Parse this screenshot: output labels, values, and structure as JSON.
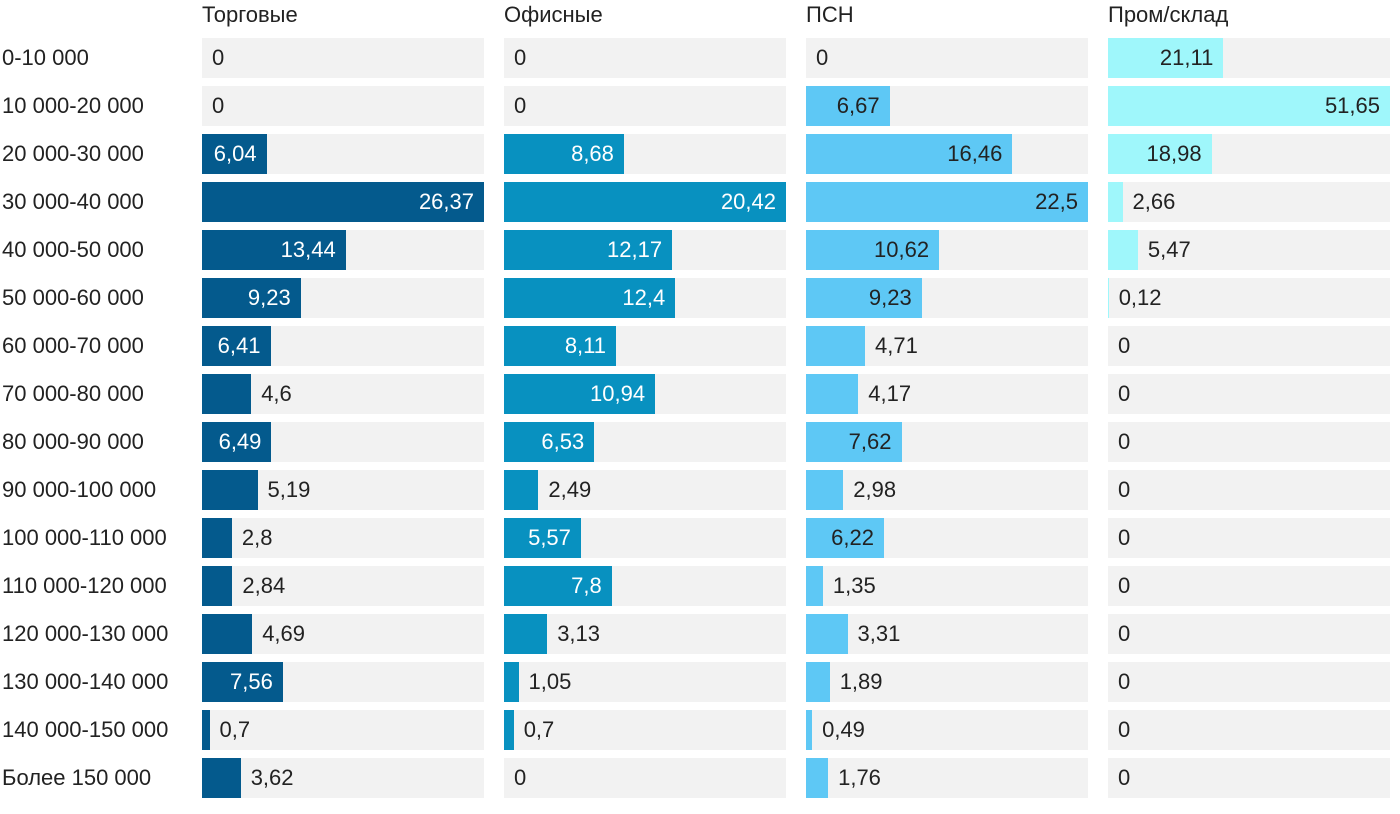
{
  "chart_data": {
    "type": "bar",
    "layout": "small-multiples-horizontal",
    "categories": [
      "0-10 000",
      "10 000-20 000",
      "20 000-30 000",
      "30 000-40 000",
      "40 000-50 000",
      "50 000-60 000",
      "60 000-70 000",
      "70 000-80 000",
      "80 000-90 000",
      "90 000-100 000",
      "100 000-110 000",
      "110 000-120 000",
      "120 000-130 000",
      "130 000-140 000",
      "140 000-150 000",
      "Более 150 000"
    ],
    "series": [
      {
        "name": "Торговые",
        "color": "#045a8d",
        "label_inside_color": "#ffffff",
        "values": [
          0,
          0,
          6.04,
          26.37,
          13.44,
          9.23,
          6.41,
          4.6,
          6.49,
          5.19,
          2.8,
          2.84,
          4.69,
          7.56,
          0.7,
          3.62
        ],
        "labels": [
          "0",
          "0",
          "6,04",
          "26,37",
          "13,44",
          "9,23",
          "6,41",
          "4,6",
          "6,49",
          "5,19",
          "2,8",
          "2,84",
          "4,69",
          "7,56",
          "0,7",
          "3,62"
        ],
        "xlim": [
          0,
          26.37
        ]
      },
      {
        "name": "Офисные",
        "color": "#0891c0",
        "label_inside_color": "#ffffff",
        "values": [
          0,
          0,
          8.68,
          20.42,
          12.17,
          12.4,
          8.11,
          10.94,
          6.53,
          2.49,
          5.57,
          7.8,
          3.13,
          1.05,
          0.7,
          0
        ],
        "labels": [
          "0",
          "0",
          "8,68",
          "20,42",
          "12,17",
          "12,4",
          "8,11",
          "10,94",
          "6,53",
          "2,49",
          "5,57",
          "7,8",
          "3,13",
          "1,05",
          "0,7",
          "0"
        ],
        "xlim": [
          0,
          20.42
        ]
      },
      {
        "name": "ПСН",
        "color": "#5ec8f5",
        "label_inside_color": "#222222",
        "values": [
          0,
          6.67,
          16.46,
          22.5,
          10.62,
          9.23,
          4.71,
          4.17,
          7.62,
          2.98,
          6.22,
          1.35,
          3.31,
          1.89,
          0.49,
          1.76
        ],
        "labels": [
          "0",
          "6,67",
          "16,46",
          "22,5",
          "10,62",
          "9,23",
          "4,71",
          "4,17",
          "7,62",
          "2,98",
          "6,22",
          "1,35",
          "3,31",
          "1,89",
          "0,49",
          "1,76"
        ],
        "xlim": [
          0,
          22.5
        ]
      },
      {
        "name": "Пром/склад",
        "color": "#9ff7fb",
        "label_inside_color": "#222222",
        "values": [
          21.11,
          51.65,
          18.98,
          2.66,
          5.47,
          0.12,
          0,
          0,
          0,
          0,
          0,
          0,
          0,
          0,
          0,
          0
        ],
        "labels": [
          "21,11",
          "51,65",
          "18,98",
          "2,66",
          "5,47",
          "0,12",
          "0",
          "0",
          "0",
          "0",
          "0",
          "0",
          "0",
          "0",
          "0",
          "0"
        ],
        "xlim": [
          0,
          51.65
        ]
      }
    ],
    "title": "",
    "xlabel": "",
    "ylabel": "",
    "grid": false,
    "legend": "none"
  }
}
